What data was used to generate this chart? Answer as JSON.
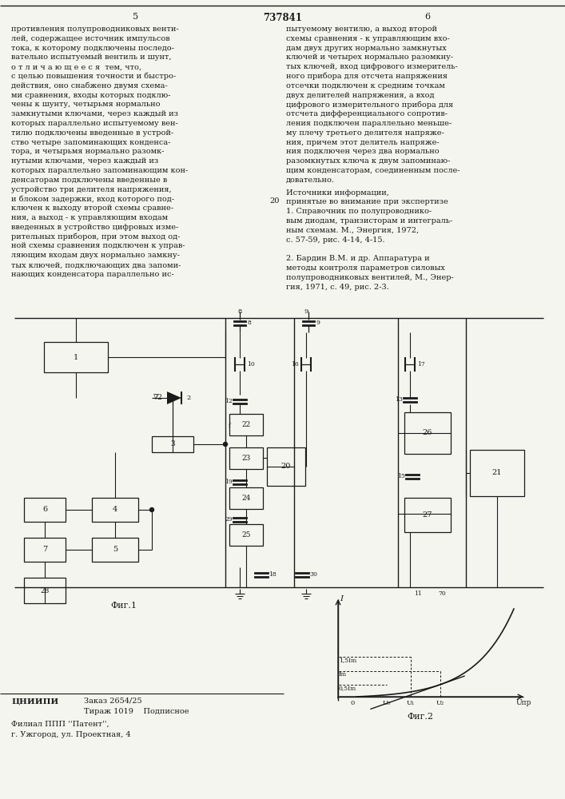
{
  "page_number_left": "5",
  "patent_number": "737841",
  "page_number_right": "6",
  "left_column_text": [
    "противления полупроводниковых венти-",
    "лей, содержащее источник импульсов",
    "тока, к которому подключены последо-",
    "вательно испытуемый вентиль и шунт,",
    "о т л и ч а ю щ е е с я  тем, что,",
    "с целью повышения точности и быстро-",
    "действия, оно снабжено двумя схема-",
    "ми сравнения, входы которых подклю-",
    "чены к шунту, четырьмя нормально",
    "замкнутыми ключами, через каждый из",
    "которых параллельно испытуемому вен-",
    "тилю подключены введенные в устрой-",
    "ство четыре запоминающих конденса-",
    "тора, и четырьмя нормально разомк-",
    "нутыми ключами, через каждый из",
    "которых параллельно запоминающим кон-",
    "денсаторам подключены введенные в",
    "устройство три делителя напряжения,",
    "и блоком задержки, вход которого под-",
    "ключен к выходу второй схемы сравне-",
    "ния, а выход - к управляющим входам",
    "введенных в устройство цифровых изме-",
    "рительных приборов, при этом выход од-",
    "ной схемы сравнения подключен к управ-",
    "ляющим входам двух нормально замкну-",
    "тых ключей, подключающих два запоми-",
    "нающих конденсатора параллельно ис-"
  ],
  "right_column_text": [
    "пытуемому вентилю, а выход второй",
    "схемы сравнения - к управляющим вхо-",
    "дам двух других нормально замкнутых",
    "ключей и четырех нормально разомкну-",
    "тых ключей, вход цифрового измеритель-",
    "ного прибора для отсчета напряжения",
    "отсечки подключен к средним точкам",
    "двух делителей напряжения, а вход",
    "цифрового измерительного прибора для",
    "отсчета дифференциального сопротив-",
    "ления подключен параллельно меньше-",
    "му плечу третьего делителя напряже-",
    "ния, причем этот делитель напряже-",
    "ния подключен через два нормально",
    "разомкнутых ключа к двум запоминаю-",
    "щим конденсаторам, соединенным после-",
    "довательно."
  ],
  "src_line1": "Источники информации,",
  "src_line2": "принятые во внимание при экспертизе",
  "src_line3": "1. Справочник по полупроводнико-",
  "src_line4": "вым диодам, транзисторам и интеграль-",
  "src_line5": "ным схемам. М., Энергия, 1972,",
  "src_line6": "с. 57-59, рис. 4-14, 4-15.",
  "src_line7": "2. Бардин В.М. и др. Аппаратура и",
  "src_line8": "методы контроля параметров силовых",
  "src_line9": "полупроводниковых вентилей, М., Энер-",
  "src_line10": "гия, 1971, с. 49, рис. 2-3.",
  "fig1_label": "Фиг.1",
  "fig2_label": "Фиг.2",
  "footer_org": "ЦНИИПИ",
  "footer_order": "Заказ 2654/25",
  "footer_print": "Тираж 1019    Подписное",
  "footer_branch": "Филиал ППП ''Патент'',",
  "footer_city": "г. Ужгород, ул. Проектная, 4",
  "line_number": "20",
  "bg_color": "#f5f5f0",
  "text_color": "#1a1a1a"
}
